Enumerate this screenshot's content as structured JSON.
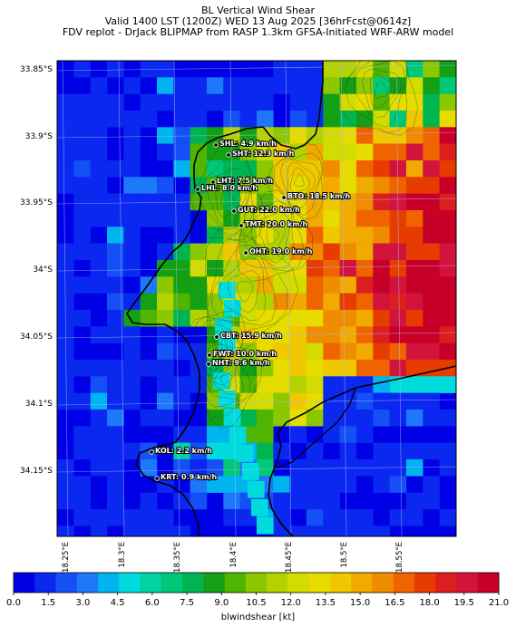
{
  "titles": {
    "line1": "BL Vertical Wind Shear",
    "line2": "Valid 1400 LST (1200Z) WED 13 Aug 2025 [36hrFcst@0614z]",
    "line3": "FDV replot - DrJack BLIPMAP from RASP 1.3km GFSA-Initiated WRF-ARW model"
  },
  "axes": {
    "lat_labels": [
      "33.85°S",
      "33.9°S",
      "33.95°S",
      "34°S",
      "34.05°S",
      "34.1°S",
      "34.15°S"
    ],
    "lon_labels": [
      "18.25°E",
      "18.3°E",
      "18.35°E",
      "18.4°E",
      "18.45°E",
      "18.5°E",
      "18.55°E"
    ]
  },
  "colorbar": {
    "title": "blwindshear [kt]",
    "ticks": [
      "0.0",
      "1.5",
      "3.0",
      "4.5",
      "6.0",
      "7.5",
      "9.0",
      "10.5",
      "12.0",
      "13.5",
      "15.0",
      "16.5",
      "18.0",
      "19.5",
      "21.0"
    ],
    "colors": [
      "#0000e6",
      "#0a28f0",
      "#1450f5",
      "#1e78fa",
      "#00b4f0",
      "#00dcdc",
      "#00d2a0",
      "#00c878",
      "#00b450",
      "#14a014",
      "#50b400",
      "#8cc800",
      "#b4d200",
      "#d2dc00",
      "#e6dc00",
      "#f0c800",
      "#f0aa00",
      "#f08c00",
      "#f06400",
      "#e63c00",
      "#dc1e1e",
      "#d2143c",
      "#c80028"
    ]
  },
  "stations": [
    {
      "code": "SHL",
      "label": "SHL: 4.9 km/h"
    },
    {
      "code": "SHT",
      "label": "SHT: 12.3 km/h"
    },
    {
      "code": "LHT",
      "label": "LHT: 7.5 km/h"
    },
    {
      "code": "LHL",
      "label": "LHL: 8.0 km/h"
    },
    {
      "code": "BTO",
      "label": "BTO: 18.5 km/h"
    },
    {
      "code": "GUT",
      "label": "GUT: 22.0 km/h"
    },
    {
      "code": "TMT",
      "label": "TMT: 20.0 km/h"
    },
    {
      "code": "OHT",
      "label": "OHT: 19.0 km/h"
    },
    {
      "code": "CBT",
      "label": "CBT: 15.9 km/h"
    },
    {
      "code": "FWT",
      "label": "FWT: 10.0 km/h"
    },
    {
      "code": "NHT",
      "label": "NHT: 9.6 km/h"
    },
    {
      "code": "KOL",
      "label": "KOL: 2.2 km/h"
    },
    {
      "code": "KRT",
      "label": "KRT: 0.9 km/h"
    }
  ]
}
